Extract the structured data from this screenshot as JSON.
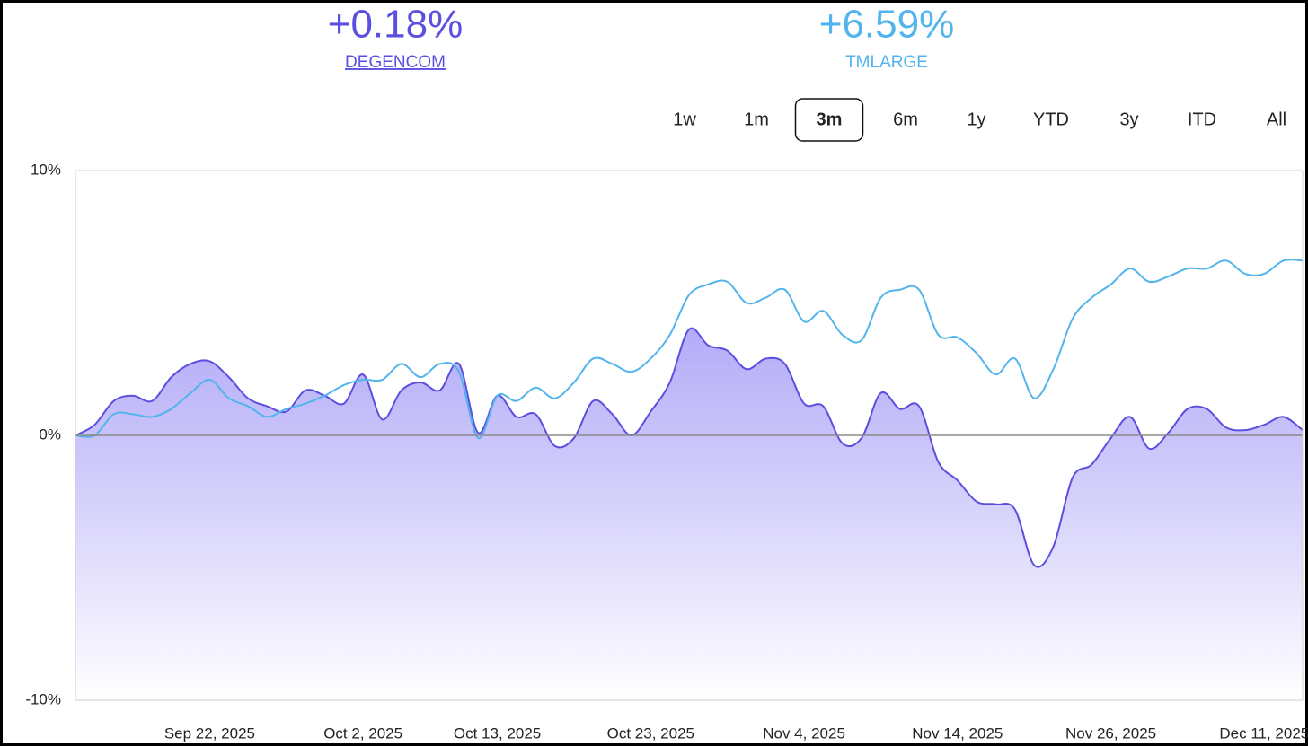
{
  "header": {
    "items": [
      {
        "value": "+0.18%",
        "name": "DEGENCOM",
        "color": "#5b4fe0",
        "link": true
      },
      {
        "value": "+6.59%",
        "name": "TMLARGE",
        "color": "#52b4ec",
        "link": false
      }
    ]
  },
  "periods": [
    "1w",
    "1m",
    "3m",
    "6m",
    "1y",
    "YTD",
    "3y",
    "ITD",
    "All"
  ],
  "selected_period": "3m",
  "chart_data": {
    "type": "line",
    "categories": [
      null,
      null,
      null,
      null,
      null,
      null,
      null,
      "Sep 22, 2025",
      null,
      null,
      null,
      null,
      null,
      null,
      null,
      "Oct 2, 2025",
      null,
      null,
      null,
      null,
      null,
      null,
      "Oct 13, 2025",
      null,
      null,
      null,
      null,
      null,
      null,
      null,
      "Oct 23, 2025",
      null,
      null,
      null,
      null,
      null,
      null,
      null,
      "Nov 4, 2025",
      null,
      null,
      null,
      null,
      null,
      null,
      null,
      "Nov 14, 2025",
      null,
      null,
      null,
      null,
      null,
      null,
      null,
      "Nov 26, 2025",
      null,
      null,
      null,
      null,
      null,
      null,
      null,
      "Dec 11, 2025",
      null,
      null
    ],
    "series": [
      {
        "name": "DEGENCOM",
        "color": "#5b4fe0",
        "fill": true,
        "values": [
          0,
          0.4,
          1.3,
          1.5,
          1.3,
          2.2,
          2.7,
          2.8,
          2.2,
          1.4,
          1.1,
          0.9,
          1.7,
          1.5,
          1.2,
          2.3,
          0.6,
          1.7,
          2.0,
          1.7,
          2.7,
          0.1,
          1.5,
          0.7,
          0.8,
          -0.4,
          -0.1,
          1.3,
          0.8,
          0.0,
          0.9,
          2.0,
          4.0,
          3.4,
          3.2,
          2.5,
          2.9,
          2.7,
          1.2,
          1.1,
          -0.3,
          -0.1,
          1.6,
          1.0,
          1.1,
          -1.0,
          -1.7,
          -2.5,
          -2.6,
          -2.8,
          -4.9,
          -4.2,
          -1.6,
          -1.1,
          -0.1,
          0.7,
          -0.5,
          0.1,
          1.0,
          1.0,
          0.3,
          0.2,
          0.4,
          0.7,
          0.2
        ]
      },
      {
        "name": "TMLARGE",
        "color": "#52b4ec",
        "fill": false,
        "values": [
          0,
          0.0,
          0.8,
          0.8,
          0.7,
          1.0,
          1.6,
          2.1,
          1.4,
          1.1,
          0.7,
          1.0,
          1.2,
          1.5,
          1.9,
          2.1,
          2.1,
          2.7,
          2.2,
          2.7,
          2.4,
          -0.1,
          1.5,
          1.3,
          1.8,
          1.4,
          2.0,
          2.9,
          2.7,
          2.4,
          2.9,
          3.8,
          5.3,
          5.7,
          5.8,
          5.0,
          5.2,
          5.5,
          4.3,
          4.7,
          3.8,
          3.6,
          5.2,
          5.5,
          5.5,
          3.8,
          3.7,
          3.1,
          2.3,
          2.9,
          1.4,
          2.5,
          4.4,
          5.2,
          5.7,
          6.3,
          5.8,
          6.0,
          6.3,
          6.3,
          6.6,
          6.1,
          6.1,
          6.6,
          6.6
        ]
      }
    ],
    "ylim": [
      -10,
      10
    ],
    "yticks": [
      {
        "value": 10,
        "label": "10%"
      },
      {
        "value": 0,
        "label": "0%"
      },
      {
        "value": -10,
        "label": "-10%"
      }
    ],
    "zero_line": true
  }
}
